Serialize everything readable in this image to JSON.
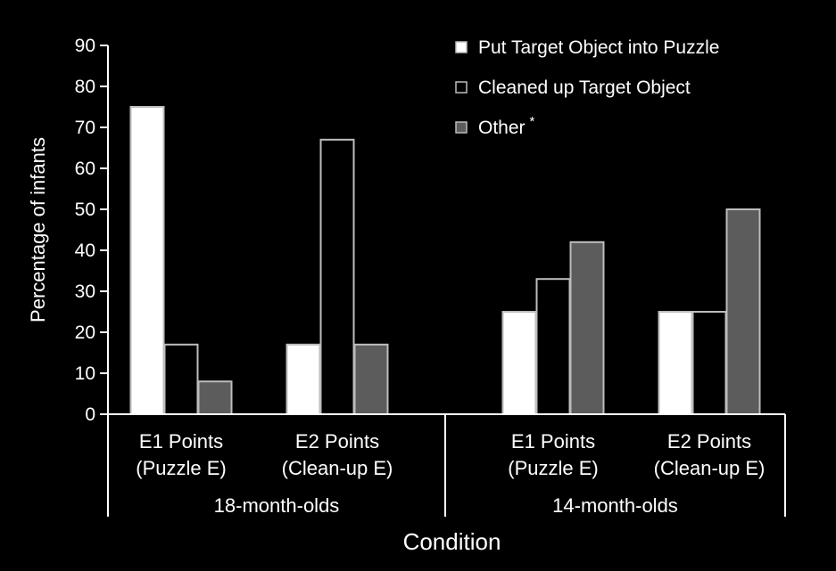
{
  "chart_data": {
    "type": "bar",
    "title": "",
    "xlabel": "Condition",
    "ylabel": "Percentage of infants",
    "ylim": [
      0,
      90
    ],
    "yticks": [
      0,
      10,
      20,
      30,
      40,
      50,
      60,
      70,
      80,
      90
    ],
    "grid": false,
    "legend_position": "top-right",
    "groups": [
      {
        "label": "18-month-olds",
        "categories": [
          {
            "line1": "E1 Points",
            "line2": "(Puzzle E)"
          },
          {
            "line1": "E2 Points",
            "line2": "(Clean-up E)"
          }
        ]
      },
      {
        "label": "14-month-olds",
        "categories": [
          {
            "line1": "E1 Points",
            "line2": "(Puzzle E)"
          },
          {
            "line1": "E2 Points",
            "line2": "(Clean-up E)"
          }
        ]
      }
    ],
    "series": [
      {
        "name": "Put Target Object into Puzzle",
        "values": [
          75,
          17,
          25,
          25
        ],
        "color": "#ffffff"
      },
      {
        "name": "Cleaned up Target Object",
        "values": [
          17,
          67,
          33,
          25
        ],
        "color": "#000000"
      },
      {
        "name": "Other",
        "name_marker": "*",
        "values": [
          8,
          17,
          42,
          50
        ],
        "color": "#5c5c5c"
      }
    ],
    "bar_border_color": "#bdbdbd"
  }
}
